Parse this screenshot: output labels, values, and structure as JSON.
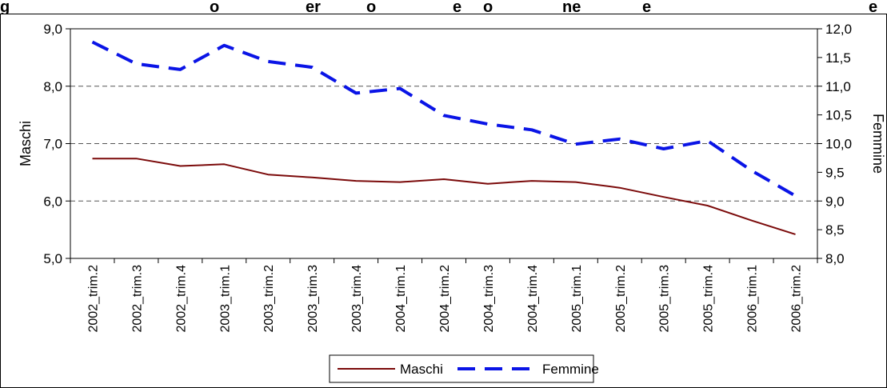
{
  "chart_data": {
    "type": "line",
    "title": "g",
    "title_right_fragments": [
      "o",
      "er",
      "o",
      "e ",
      "o",
      "ne ",
      "e",
      "e"
    ],
    "categories": [
      "2002_trim.2",
      "2002_trim.3",
      "2002_trim.4",
      "2003_trim.1",
      "2003_trim.2",
      "2003_trim.3",
      "2003_trim.4",
      "2004_trim.1",
      "2004_trim.2",
      "2004_trim.3",
      "2004_trim.4",
      "2005_trim.1",
      "2005_trim.2",
      "2005_trim.3",
      "2005_trim.4",
      "2006_trim.1",
      "2006_trim.2"
    ],
    "series": [
      {
        "name": "Maschi",
        "axis": "left",
        "color": "#7b0a0a",
        "style": "solid",
        "values": [
          6.74,
          6.74,
          6.61,
          6.64,
          6.46,
          6.41,
          6.35,
          6.33,
          6.38,
          6.3,
          6.35,
          6.33,
          6.23,
          6.07,
          5.92,
          5.66,
          5.42
        ]
      },
      {
        "name": "Femmine",
        "axis": "right",
        "color": "#0a14e6",
        "style": "dashed",
        "values": [
          11.77,
          11.39,
          11.29,
          11.71,
          11.43,
          11.33,
          10.88,
          10.96,
          10.49,
          10.34,
          10.24,
          9.99,
          10.08,
          9.91,
          10.05,
          9.53,
          9.09
        ]
      }
    ],
    "ylabel": "Maschi",
    "y2label": "Femmine",
    "ylim": [
      5.0,
      9.0
    ],
    "yticks": [
      "5,0",
      "6,0",
      "7,0",
      "8,0",
      "9,0"
    ],
    "y2lim": [
      8.0,
      12.0
    ],
    "y2ticks": [
      "8,0",
      "8,5",
      "9,0",
      "9,5",
      "10,0",
      "10,5",
      "11,0",
      "11,5",
      "12,0"
    ],
    "grid": "horizontal dashed",
    "legend": "bottom-center"
  }
}
